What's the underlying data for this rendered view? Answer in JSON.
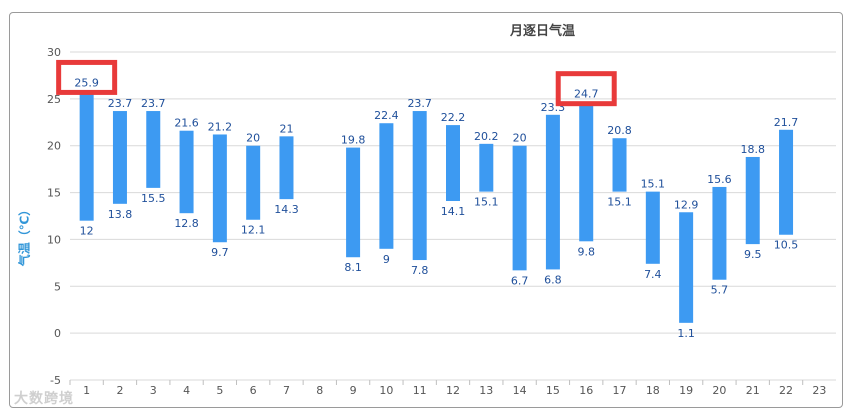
{
  "chart_data": {
    "type": "bar",
    "subtype": "floating-range",
    "title": "月逐日气温",
    "ylabel": "气温（℃）",
    "xlabel": "",
    "ylim": [
      -5,
      30
    ],
    "yticks": [
      -5,
      0,
      5,
      10,
      15,
      20,
      25,
      30
    ],
    "categories": [
      "1",
      "2",
      "3",
      "4",
      "5",
      "6",
      "7",
      "8",
      "9",
      "10",
      "11",
      "12",
      "13",
      "14",
      "15",
      "16",
      "17",
      "18",
      "19",
      "20",
      "21",
      "22",
      "23"
    ],
    "low": [
      12,
      13.8,
      15.5,
      12.8,
      9.7,
      12.1,
      14.3,
      null,
      8.1,
      9,
      7.8,
      14.1,
      15.1,
      6.7,
      6.8,
      9.8,
      15.1,
      7.4,
      1.1,
      5.7,
      9.5,
      10.5,
      null
    ],
    "high": [
      25.9,
      23.7,
      23.7,
      21.6,
      21.2,
      20,
      21,
      null,
      19.8,
      22.4,
      23.7,
      22.2,
      20.2,
      20,
      23.3,
      24.7,
      20.8,
      15.1,
      12.9,
      15.6,
      18.8,
      21.7,
      null
    ],
    "low_labels": [
      "12",
      "13.8",
      "15.5",
      "12.8",
      "9.7",
      "12.1",
      "14.3",
      "",
      "8.1",
      "9",
      "7.8",
      "14.1",
      "15.1",
      "6.7",
      "6.8",
      "9.8",
      "15.1",
      "7.4",
      "1.1",
      "5.7",
      "9.5",
      "10.5",
      ""
    ],
    "high_labels": [
      "25.9",
      "23.7",
      "23.7",
      "21.6",
      "21.2",
      "20",
      "21",
      "",
      "19.8",
      "22.4",
      "23.7",
      "22.2",
      "20.2",
      "20",
      "23.3",
      "24.7",
      "20.8",
      "15.1",
      "12.9",
      "15.6",
      "18.8",
      "21.7",
      ""
    ],
    "bar_color": "#3d9af2",
    "grid": true,
    "highlighted_categories": [
      "1",
      "16"
    ],
    "highlight_color": "#e83a3a"
  },
  "watermark": "大数跨境"
}
